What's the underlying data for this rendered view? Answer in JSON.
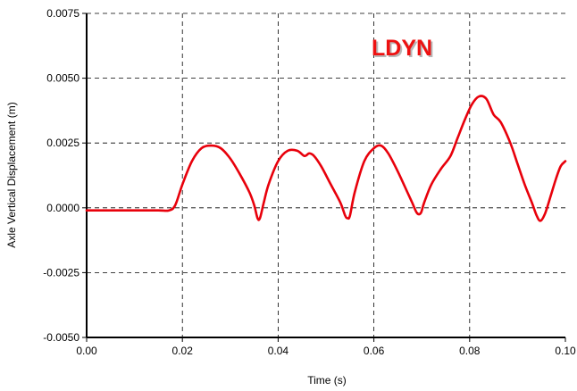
{
  "chart_data": {
    "type": "line",
    "title": "",
    "annotation": "LDYN",
    "xlabel": "Time (s)",
    "ylabel": "Axle Vertical Displacement (m)",
    "xlim": [
      0.0,
      0.1
    ],
    "ylim": [
      -0.005,
      0.0075
    ],
    "x_ticks": [
      "0.00",
      "0.02",
      "0.04",
      "0.06",
      "0.08",
      "0.10"
    ],
    "y_ticks": [
      "-0.0050",
      "-0.0025",
      "0.0000",
      "0.0025",
      "0.0050",
      "0.0075"
    ],
    "grid": true,
    "grid_style": "dashed",
    "legend": "none",
    "series": [
      {
        "color": "#e8000b",
        "x": [
          0.0,
          0.005,
          0.01,
          0.015,
          0.0172,
          0.0185,
          0.02,
          0.022,
          0.024,
          0.026,
          0.028,
          0.03,
          0.032,
          0.034,
          0.035,
          0.0357,
          0.0362,
          0.037,
          0.038,
          0.04,
          0.042,
          0.044,
          0.0455,
          0.0465,
          0.0475,
          0.049,
          0.051,
          0.053,
          0.054,
          0.0545,
          0.055,
          0.056,
          0.058,
          0.06,
          0.0615,
          0.063,
          0.065,
          0.067,
          0.068,
          0.069,
          0.0698,
          0.0705,
          0.072,
          0.074,
          0.076,
          0.0775,
          0.079,
          0.0805,
          0.082,
          0.0835,
          0.085,
          0.0865,
          0.0885,
          0.09,
          0.0915,
          0.093,
          0.094,
          0.0948,
          0.0958,
          0.097,
          0.098,
          0.099,
          0.1
        ],
        "y": [
          -0.0001,
          -0.0001,
          -0.0001,
          -0.0001,
          -0.0001,
          0.0001,
          0.0009,
          0.0018,
          0.0023,
          0.0024,
          0.0023,
          0.0019,
          0.0013,
          0.0006,
          0.0001,
          -0.0004,
          -0.0004,
          0.0002,
          0.0009,
          0.0018,
          0.0022,
          0.0022,
          0.002,
          0.0021,
          0.002,
          0.0016,
          0.0009,
          0.0002,
          -0.0003,
          -0.0004,
          -0.0003,
          0.0006,
          0.0018,
          0.0023,
          0.0024,
          0.0021,
          0.0014,
          0.0006,
          0.0002,
          -0.0002,
          -0.0002,
          0.0002,
          0.0009,
          0.0015,
          0.002,
          0.0027,
          0.0034,
          0.004,
          0.0043,
          0.0042,
          0.0036,
          0.0033,
          0.0025,
          0.0017,
          0.0009,
          0.0002,
          -0.0003,
          -0.0005,
          -0.0002,
          0.0005,
          0.0011,
          0.0016,
          0.0018
        ]
      }
    ]
  },
  "colors": {
    "line": "#e8000b",
    "annotation": "#ee1111",
    "annotation_shadow": "#b8b8b8",
    "grid": "#000000",
    "axis": "#000000"
  }
}
